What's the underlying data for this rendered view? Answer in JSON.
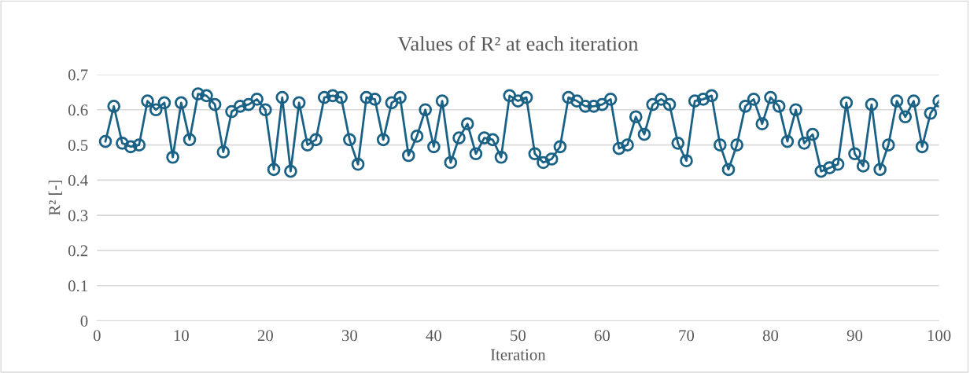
{
  "chart_data": {
    "type": "line",
    "title": "Values of R² at each iteration",
    "xlabel": "Iteration",
    "ylabel": "R² [-]",
    "x": [
      1,
      2,
      3,
      4,
      5,
      6,
      7,
      8,
      9,
      10,
      11,
      12,
      13,
      14,
      15,
      16,
      17,
      18,
      19,
      20,
      21,
      22,
      23,
      24,
      25,
      26,
      27,
      28,
      29,
      30,
      31,
      32,
      33,
      34,
      35,
      36,
      37,
      38,
      39,
      40,
      41,
      42,
      43,
      44,
      45,
      46,
      47,
      48,
      49,
      50,
      51,
      52,
      53,
      54,
      55,
      56,
      57,
      58,
      59,
      60,
      61,
      62,
      63,
      64,
      65,
      66,
      67,
      68,
      69,
      70,
      71,
      72,
      73,
      74,
      75,
      76,
      77,
      78,
      79,
      80,
      81,
      82,
      83,
      84,
      85,
      86,
      87,
      88,
      89,
      90,
      91,
      92,
      93,
      94,
      95,
      96,
      97,
      98,
      99,
      100
    ],
    "series": [
      {
        "color": "#1a6186",
        "values": [
          0.51,
          0.61,
          0.505,
          0.495,
          0.5,
          0.625,
          0.6,
          0.62,
          0.465,
          0.62,
          0.515,
          0.645,
          0.64,
          0.615,
          0.48,
          0.595,
          0.61,
          0.615,
          0.63,
          0.6,
          0.43,
          0.635,
          0.425,
          0.62,
          0.5,
          0.515,
          0.635,
          0.64,
          0.635,
          0.515,
          0.445,
          0.635,
          0.63,
          0.515,
          0.62,
          0.635,
          0.47,
          0.525,
          0.6,
          0.495,
          0.625,
          0.45,
          0.52,
          0.56,
          0.475,
          0.52,
          0.515,
          0.465,
          0.64,
          0.625,
          0.635,
          0.475,
          0.45,
          0.46,
          0.495,
          0.635,
          0.625,
          0.61,
          0.61,
          0.615,
          0.63,
          0.49,
          0.5,
          0.58,
          0.53,
          0.615,
          0.63,
          0.615,
          0.505,
          0.455,
          0.625,
          0.63,
          0.64,
          0.5,
          0.43,
          0.5,
          0.61,
          0.63,
          0.56,
          0.635,
          0.61,
          0.51,
          0.6,
          0.505,
          0.53,
          0.425,
          0.435,
          0.445,
          0.62,
          0.475,
          0.44,
          0.615,
          0.43,
          0.5,
          0.625,
          0.58,
          0.625,
          0.495,
          0.59,
          0.625
        ]
      }
    ],
    "xlim": [
      0,
      100
    ],
    "xticks": [
      0,
      10,
      20,
      30,
      40,
      50,
      60,
      70,
      80,
      90,
      100
    ],
    "ylim": [
      0,
      0.7
    ],
    "yticks": [
      0,
      0.1,
      0.2,
      0.3,
      0.4,
      0.5,
      0.6,
      0.7
    ],
    "grid": "y",
    "marker": "circle",
    "line_style": "solid",
    "legend": false
  }
}
